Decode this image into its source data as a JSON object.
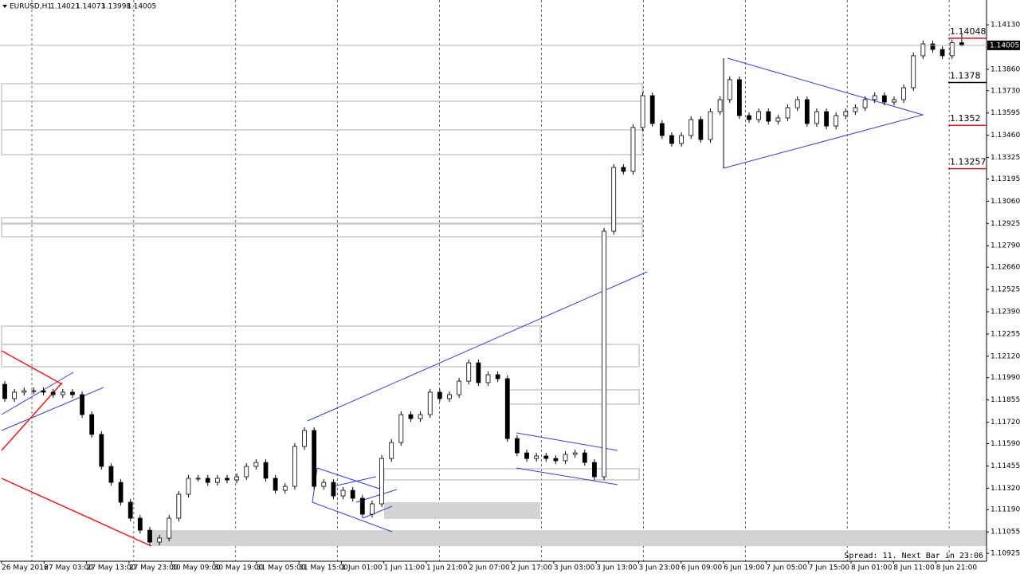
{
  "chart_data": {
    "type": "candlestick",
    "symbol": "EURUSD,H1",
    "status": "Spread: 11. Next Bar in 23:06",
    "ylim": [
      1.10877,
      1.1428
    ],
    "yticks": [
      {
        "value": 1.1413,
        "label": "1.14130"
      },
      {
        "value": 1.1386,
        "label": "1.13860"
      },
      {
        "value": 1.1373,
        "label": "1.13730"
      },
      1.13595,
      {
        "value": 1.1346,
        "label": "1.13460"
      },
      1.13325,
      1.13195,
      {
        "value": 1.1306,
        "label": "1.13060"
      },
      1.12925,
      {
        "value": 1.1279,
        "label": "1.12790"
      },
      {
        "value": 1.1266,
        "label": "1.12660"
      },
      1.12525,
      {
        "value": 1.1239,
        "label": "1.12390"
      },
      1.12255,
      {
        "value": 1.1212,
        "label": "1.12120"
      },
      {
        "value": 1.1199,
        "label": "1.11990"
      },
      1.11855,
      {
        "value": 1.1172,
        "label": "1.11720"
      },
      {
        "value": 1.1159,
        "label": "1.11590"
      },
      1.11455,
      {
        "value": 1.1132,
        "label": "1.11320"
      },
      {
        "value": 1.1119,
        "label": "1.11190"
      },
      1.11055,
      1.10925
    ],
    "x_labels": [
      "26 May 2016",
      "27 May 03:00",
      "27 May 13:00",
      "27 May 23:00",
      "30 May 09:00",
      "30 May 19:00",
      "31 May 05:00",
      "31 May 15:00",
      "1 Jun 01:00",
      "1 Jun 11:00",
      "1 Jun 21:00",
      "2 Jun 07:00",
      "2 Jun 17:00",
      "3 Jun 03:00",
      "3 Jun 13:00",
      "3 Jun 23:00",
      "6 Jun 09:00",
      "6 Jun 19:00",
      "7 Jun 05:00",
      "7 Jun 15:00",
      "8 Jun 01:00",
      "8 Jun 11:00",
      "8 Jun 21:00"
    ],
    "grid": true,
    "levels": [
      {
        "value": 1.14048,
        "color": "#e8141e"
      },
      {
        "value": 1.1378,
        "color": "#000000"
      },
      {
        "value": 1.1352,
        "color": "#e8141e"
      },
      {
        "value": 1.13257,
        "color": "#e8141e"
      }
    ],
    "candles": [
      [
        1.1195,
        1.1197,
        1.11843,
        1.11863
      ],
      [
        1.11863,
        1.11922,
        1.11843,
        1.11902
      ],
      [
        1.11902,
        1.11931,
        1.11882,
        1.11911
      ],
      [
        1.11911,
        1.11931,
        1.11891,
        1.11911
      ],
      [
        1.11911,
        1.11931,
        1.11882,
        1.11902
      ],
      [
        1.11902,
        1.11922,
        1.11867,
        1.11887
      ],
      [
        1.11887,
        1.11922,
        1.11867,
        1.11902
      ],
      [
        1.11902,
        1.11922,
        1.11867,
        1.11887
      ],
      [
        1.11887,
        1.11907,
        1.11746,
        1.11766
      ],
      [
        1.11766,
        1.11786,
        1.11626,
        1.11646
      ],
      [
        1.11646,
        1.11666,
        1.11432,
        1.11452
      ],
      [
        1.11452,
        1.11472,
        1.11335,
        1.11355
      ],
      [
        1.11355,
        1.11375,
        1.11215,
        1.11235
      ],
      [
        1.11235,
        1.11255,
        1.11118,
        1.11138
      ],
      [
        1.11138,
        1.11158,
        1.11045,
        1.11065
      ],
      [
        1.11065,
        1.11085,
        1.10973,
        1.10993
      ],
      [
        1.10993,
        1.11037,
        1.10973,
        1.11017
      ],
      [
        1.11017,
        1.11158,
        1.10997,
        1.11138
      ],
      [
        1.11138,
        1.11303,
        1.11118,
        1.11283
      ],
      [
        1.11283,
        1.114,
        1.11263,
        1.1138
      ],
      [
        1.1138,
        1.114,
        1.1136,
        1.1138
      ],
      [
        1.1138,
        1.114,
        1.11335,
        1.11355
      ],
      [
        1.11355,
        1.114,
        1.11335,
        1.1138
      ],
      [
        1.1138,
        1.114,
        1.1135,
        1.1137
      ],
      [
        1.1137,
        1.11409,
        1.1135,
        1.11389
      ],
      [
        1.11389,
        1.11472,
        1.11369,
        1.11452
      ],
      [
        1.11452,
        1.11496,
        1.11432,
        1.11476
      ],
      [
        1.11476,
        1.11496,
        1.1136,
        1.1138
      ],
      [
        1.1138,
        1.114,
        1.11287,
        1.11307
      ],
      [
        1.11307,
        1.11351,
        1.11287,
        1.11331
      ],
      [
        1.11331,
        1.11593,
        1.11311,
        1.11573
      ],
      [
        1.11573,
        1.1169,
        1.11553,
        1.1167
      ],
      [
        1.1167,
        1.1169,
        1.11311,
        1.11331
      ],
      [
        1.11331,
        1.11375,
        1.11311,
        1.11355
      ],
      [
        1.11355,
        1.11375,
        1.11253,
        1.11273
      ],
      [
        1.11273,
        1.11327,
        1.11253,
        1.11307
      ],
      [
        1.11307,
        1.11327,
        1.11239,
        1.11259
      ],
      [
        1.11259,
        1.11279,
        1.11142,
        1.11162
      ],
      [
        1.11162,
        1.11245,
        1.11142,
        1.11225
      ],
      [
        1.11225,
        1.1152,
        1.11205,
        1.115
      ],
      [
        1.115,
        1.11617,
        1.1148,
        1.11597
      ],
      [
        1.11597,
        1.11786,
        1.11577,
        1.11766
      ],
      [
        1.11766,
        1.11786,
        1.11722,
        1.11742
      ],
      [
        1.11742,
        1.11786,
        1.11722,
        1.11766
      ],
      [
        1.11766,
        1.11922,
        1.11746,
        1.11902
      ],
      [
        1.11902,
        1.11922,
        1.11843,
        1.11863
      ],
      [
        1.11863,
        1.11907,
        1.11843,
        1.11887
      ],
      [
        1.11887,
        1.11989,
        1.11867,
        1.11969
      ],
      [
        1.11969,
        1.121,
        1.11949,
        1.1208
      ],
      [
        1.1208,
        1.121,
        1.1194,
        1.1196
      ],
      [
        1.1196,
        1.12028,
        1.1194,
        1.12008
      ],
      [
        1.12008,
        1.12028,
        1.11964,
        1.11984
      ],
      [
        1.11984,
        1.12004,
        1.11601,
        1.11621
      ],
      [
        1.11621,
        1.11641,
        1.11514,
        1.11534
      ],
      [
        1.11534,
        1.11554,
        1.1148,
        1.115
      ],
      [
        1.115,
        1.11535,
        1.1148,
        1.11515
      ],
      [
        1.11515,
        1.11535,
        1.1148,
        1.115
      ],
      [
        1.115,
        1.1152,
        1.11466,
        1.11486
      ],
      [
        1.11486,
        1.11545,
        1.11466,
        1.11525
      ],
      [
        1.11525,
        1.11554,
        1.11505,
        1.11534
      ],
      [
        1.11534,
        1.11554,
        1.11456,
        1.11476
      ],
      [
        1.11476,
        1.11496,
        1.11369,
        1.11389
      ],
      [
        1.11389,
        1.12898,
        1.11369,
        1.12878
      ],
      [
        1.12878,
        1.13285,
        1.12858,
        1.13265
      ],
      [
        1.13265,
        1.13285,
        1.13221,
        1.13241
      ],
      [
        1.13241,
        1.13527,
        1.13221,
        1.13507
      ],
      [
        1.13507,
        1.1372,
        1.13487,
        1.137
      ],
      [
        1.137,
        1.1372,
        1.13511,
        1.13531
      ],
      [
        1.13531,
        1.13551,
        1.13438,
        1.13458
      ],
      [
        1.13458,
        1.13478,
        1.1339,
        1.1341
      ],
      [
        1.1341,
        1.13478,
        1.1339,
        1.13458
      ],
      [
        1.13458,
        1.13575,
        1.13438,
        1.13555
      ],
      [
        1.13555,
        1.13575,
        1.13414,
        1.13434
      ],
      [
        1.13434,
        1.13623,
        1.13414,
        1.13603
      ],
      [
        1.13603,
        1.13696,
        1.13583,
        1.13676
      ],
      [
        1.13676,
        1.13817,
        1.13656,
        1.13797
      ],
      [
        1.13797,
        1.13817,
        1.13559,
        1.13579
      ],
      [
        1.13579,
        1.13599,
        1.13535,
        1.13555
      ],
      [
        1.13555,
        1.13623,
        1.13535,
        1.13603
      ],
      [
        1.13603,
        1.13623,
        1.13525,
        1.13545
      ],
      [
        1.13545,
        1.13585,
        1.13525,
        1.13565
      ],
      [
        1.13565,
        1.13647,
        1.13545,
        1.13627
      ],
      [
        1.13627,
        1.13696,
        1.13607,
        1.13676
      ],
      [
        1.13676,
        1.13696,
        1.13511,
        1.13531
      ],
      [
        1.13531,
        1.13623,
        1.13511,
        1.13603
      ],
      [
        1.13603,
        1.13623,
        1.13496,
        1.13516
      ],
      [
        1.13516,
        1.13599,
        1.13496,
        1.13579
      ],
      [
        1.13579,
        1.13623,
        1.13559,
        1.13603
      ],
      [
        1.13603,
        1.13647,
        1.13583,
        1.13627
      ],
      [
        1.13627,
        1.13696,
        1.13607,
        1.13676
      ],
      [
        1.13676,
        1.1372,
        1.13656,
        1.137
      ],
      [
        1.137,
        1.1372,
        1.13641,
        1.13661
      ],
      [
        1.13661,
        1.13696,
        1.13641,
        1.13676
      ],
      [
        1.13676,
        1.13768,
        1.13656,
        1.13748
      ],
      [
        1.13748,
        1.13962,
        1.13728,
        1.13942
      ],
      [
        1.13942,
        1.14034,
        1.13922,
        1.14014
      ],
      [
        1.14014,
        1.14034,
        1.1396,
        1.1398
      ],
      [
        1.1398,
        1.14,
        1.13922,
        1.13942
      ],
      [
        1.13942,
        1.14041,
        1.13922,
        1.14021
      ],
      [
        1.14021,
        1.14073,
        1.13998,
        1.14005
      ]
    ]
  }
}
